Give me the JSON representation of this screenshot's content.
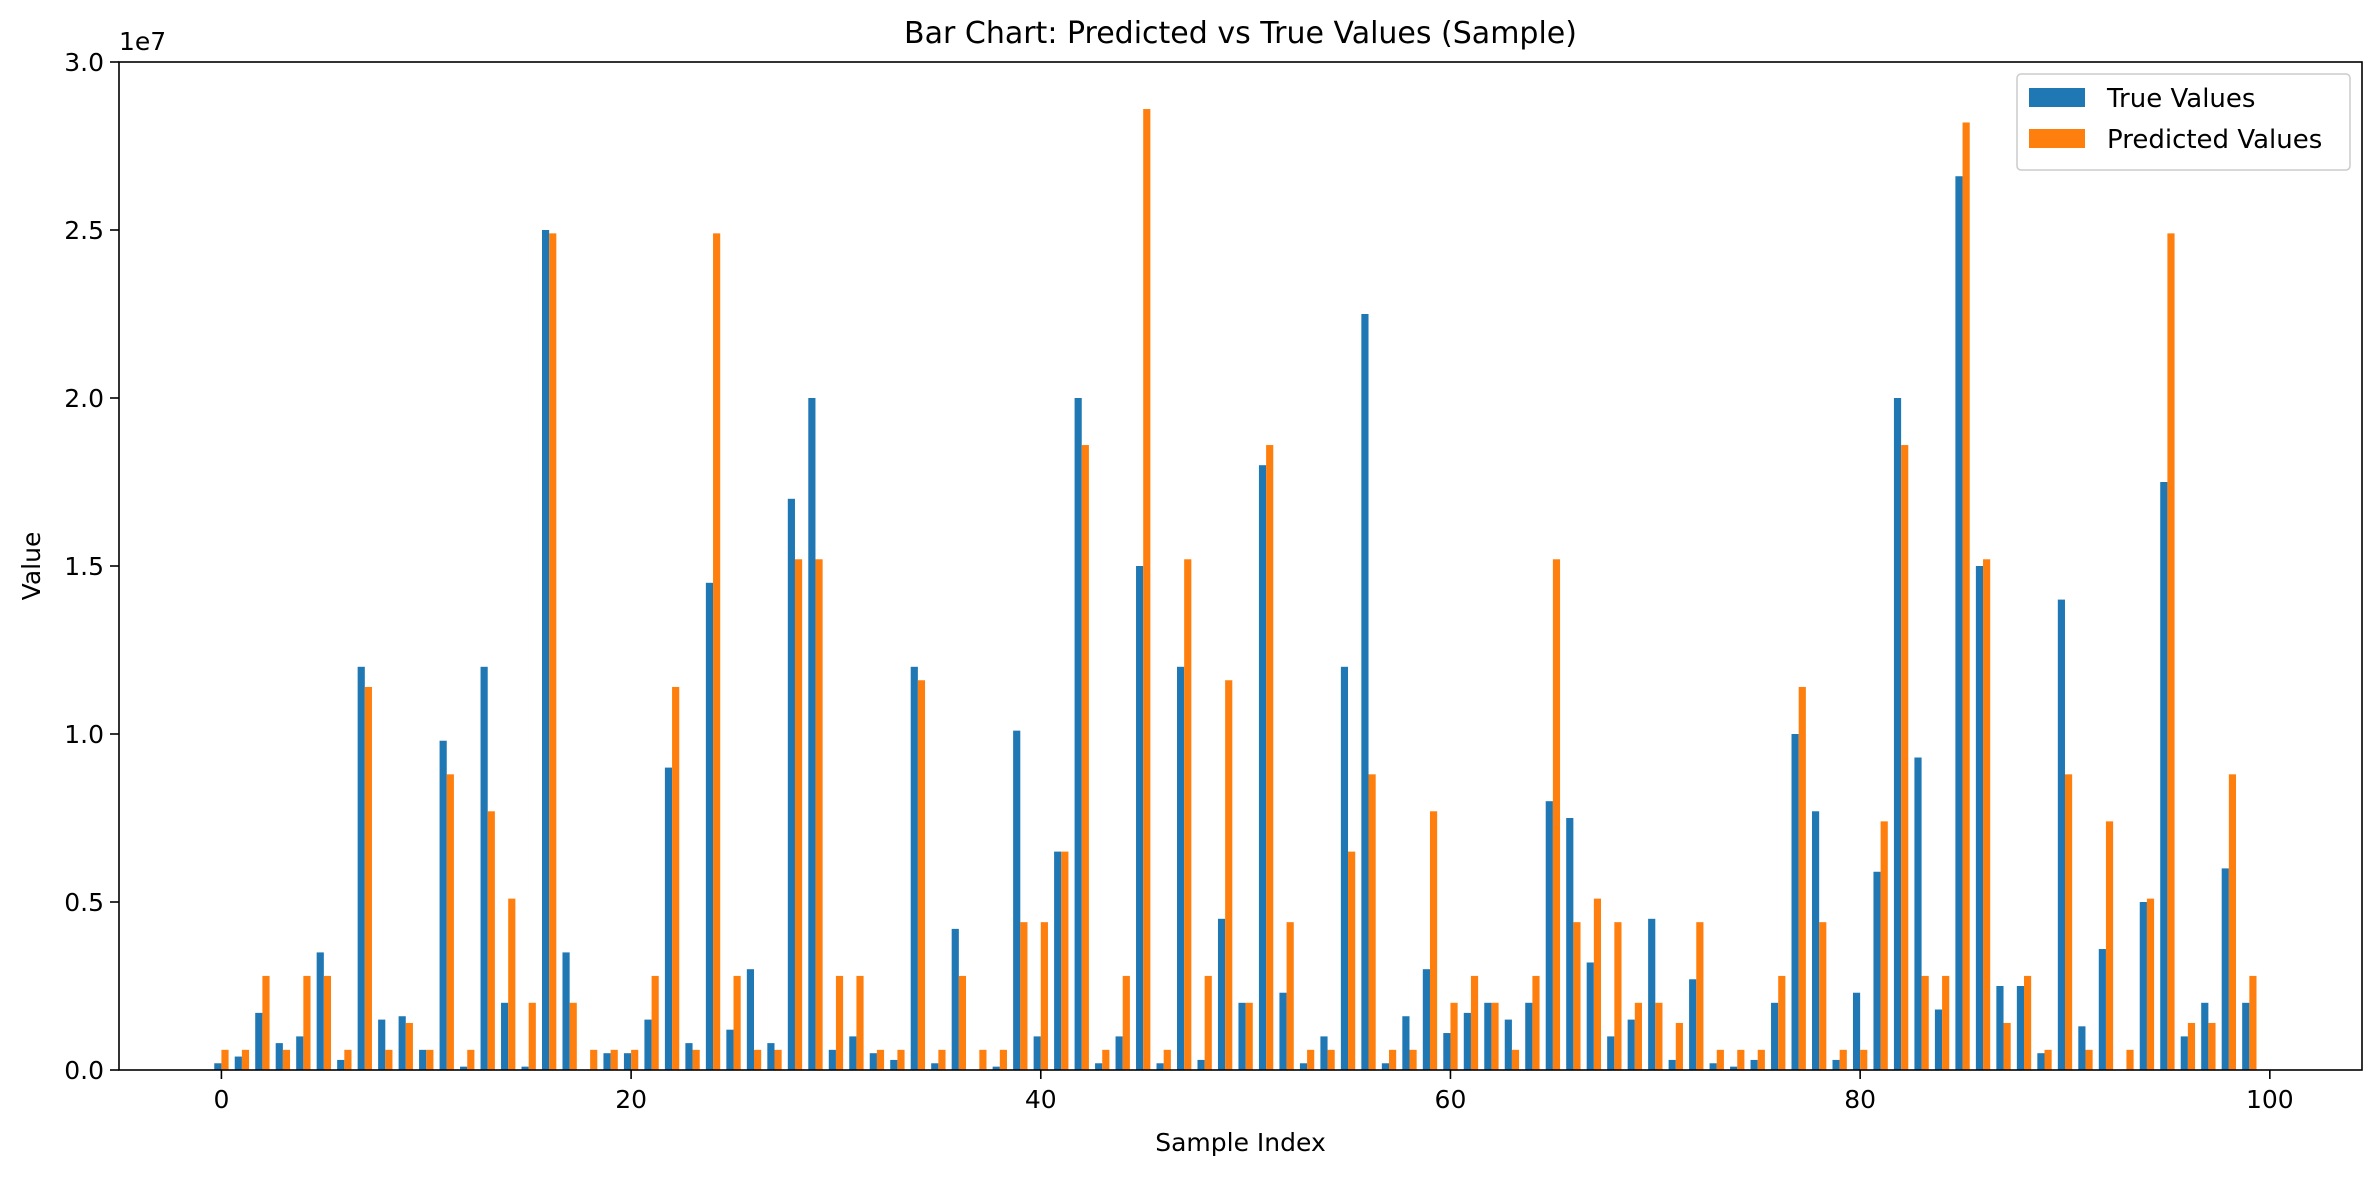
{
  "chart_data": {
    "type": "bar",
    "title": "Bar Chart: Predicted vs True Values (Sample)",
    "xlabel": "Sample Index",
    "ylabel": "Value",
    "y_offset_label": "1e7",
    "xlim": [
      -5,
      104.5
    ],
    "ylim": [
      0,
      3.0
    ],
    "x_ticks": [
      0,
      20,
      40,
      60,
      80,
      100
    ],
    "x_tick_labels": [
      "0",
      "20",
      "40",
      "60",
      "80",
      "100"
    ],
    "y_ticks": [
      0,
      0.5,
      1.0,
      1.5,
      2.0,
      2.5,
      3.0
    ],
    "y_tick_labels": [
      "0.0",
      "0.5",
      "1.0",
      "1.5",
      "2.0",
      "2.5",
      "3.0"
    ],
    "legend_position": "top-right",
    "grid": false,
    "bar_width": 0.35,
    "x": [
      0,
      1,
      2,
      3,
      4,
      5,
      6,
      7,
      8,
      9,
      10,
      11,
      12,
      13,
      14,
      15,
      16,
      17,
      18,
      19,
      20,
      21,
      22,
      23,
      24,
      25,
      26,
      27,
      28,
      29,
      30,
      31,
      32,
      33,
      34,
      35,
      36,
      37,
      38,
      39,
      40,
      41,
      42,
      43,
      44,
      45,
      46,
      47,
      48,
      49,
      50,
      51,
      52,
      53,
      54,
      55,
      56,
      57,
      58,
      59,
      60,
      61,
      62,
      63,
      64,
      65,
      66,
      67,
      68,
      69,
      70,
      71,
      72,
      73,
      74,
      75,
      76,
      77,
      78,
      79,
      80,
      81,
      82,
      83,
      84,
      85,
      86,
      87,
      88,
      89,
      90,
      91,
      92,
      93,
      94,
      95,
      96,
      97,
      98,
      99
    ],
    "series": [
      {
        "name": "True Values",
        "color": "#1f77b4",
        "values": [
          0.02,
          0.04,
          0.17,
          0.08,
          0.1,
          0.35,
          0.03,
          1.2,
          0.15,
          0.16,
          0.06,
          0.98,
          0.01,
          1.2,
          0.2,
          0.01,
          2.5,
          0.35,
          0.0,
          0.05,
          0.05,
          0.15,
          0.9,
          0.08,
          1.45,
          0.12,
          0.3,
          0.08,
          1.7,
          2.0,
          0.06,
          0.1,
          0.05,
          0.03,
          1.2,
          0.02,
          0.42,
          0.0,
          0.01,
          1.01,
          0.1,
          0.65,
          2.0,
          0.02,
          0.1,
          1.5,
          0.02,
          1.2,
          0.03,
          0.45,
          0.2,
          1.8,
          0.23,
          0.02,
          0.1,
          1.2,
          2.25,
          0.02,
          0.16,
          0.3,
          0.11,
          0.17,
          0.2,
          0.15,
          0.2,
          0.8,
          0.75,
          0.32,
          0.1,
          0.15,
          0.45,
          0.03,
          0.27,
          0.02,
          0.01,
          0.03,
          0.2,
          1.0,
          0.77,
          0.03,
          0.23,
          0.59,
          2.0,
          0.93,
          0.18,
          2.66,
          1.5,
          0.25,
          0.25,
          0.05,
          1.4,
          0.13,
          0.36,
          0.0,
          0.5,
          1.75,
          0.1,
          0.2,
          0.6,
          0.2
        ]
      },
      {
        "name": "Predicted Values",
        "color": "#ff7f0e",
        "values": [
          0.06,
          0.06,
          0.28,
          0.06,
          0.28,
          0.28,
          0.06,
          1.14,
          0.06,
          0.14,
          0.06,
          0.88,
          0.06,
          0.77,
          0.51,
          0.2,
          2.49,
          0.2,
          0.06,
          0.06,
          0.06,
          0.28,
          1.14,
          0.06,
          2.49,
          0.28,
          0.06,
          0.06,
          1.52,
          1.52,
          0.28,
          0.28,
          0.06,
          0.06,
          1.16,
          0.06,
          0.28,
          0.06,
          0.06,
          0.44,
          0.44,
          0.65,
          1.86,
          0.06,
          0.28,
          2.86,
          0.06,
          1.52,
          0.28,
          1.16,
          0.2,
          1.86,
          0.44,
          0.06,
          0.06,
          0.65,
          0.88,
          0.06,
          0.06,
          0.77,
          0.2,
          0.28,
          0.2,
          0.06,
          0.28,
          1.52,
          0.44,
          0.51,
          0.44,
          0.2,
          0.2,
          0.14,
          0.44,
          0.06,
          0.06,
          0.06,
          0.28,
          1.14,
          0.44,
          0.06,
          0.06,
          0.74,
          1.86,
          0.28,
          0.28,
          2.82,
          1.52,
          0.14,
          0.28,
          0.06,
          0.88,
          0.06,
          0.74,
          0.06,
          0.51,
          2.49,
          0.14,
          0.14,
          0.88,
          0.28
        ]
      }
    ]
  }
}
